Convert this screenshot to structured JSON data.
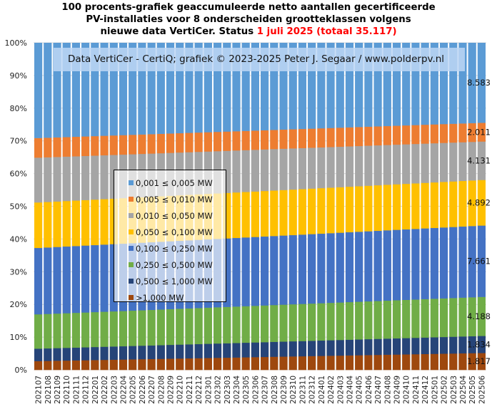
{
  "title": {
    "line1": "100 procents-grafiek geaccumuleerde netto aantallen gecertificeerde",
    "line2": "PV-installaties voor 8 onderscheiden grootteklassen volgens",
    "line3_prefix": "nieuwe data VertiCer. Status ",
    "line3_highlight": "1 juli 2025 (totaal 35.117)",
    "highlight_color": "#ff0000"
  },
  "annotation": "Data VertiCer - CertiQ; grafiek © 2023-2025  Peter J. Segaar / www.polderpv.nl",
  "chart_data": {
    "type": "bar",
    "stacked": "100%",
    "title": "100 procents-grafiek geaccumuleerde netto aantallen gecertificeerde PV-installaties voor 8 onderscheiden grootteklassen volgens nieuwe data VertiCer. Status 1 juli 2025 (totaal 35.117)",
    "xlabel": "",
    "ylabel": "",
    "ylim": [
      0,
      100
    ],
    "yticks": [
      "0%",
      "10%",
      "20%",
      "30%",
      "40%",
      "50%",
      "60%",
      "70%",
      "80%",
      "90%",
      "100%"
    ],
    "grid": true,
    "legend_position": "center-left",
    "categories": [
      "202107",
      "202108",
      "202109",
      "202110",
      "202111",
      "202112",
      "202201",
      "202202",
      "202203",
      "202204",
      "202205",
      "202206",
      "202207",
      "202208",
      "202209",
      "202210",
      "202211",
      "202212",
      "202301",
      "202302",
      "202303",
      "202304",
      "202305",
      "202306",
      "202307",
      "202308",
      "202309",
      "202310",
      "202311",
      "202312",
      "202401",
      "202402",
      "202403",
      "202404",
      "202405",
      "202406",
      "202407",
      "202408",
      "202409",
      "202410",
      "202411",
      "202412",
      "202501",
      "202502",
      "202503",
      "202504",
      "202505",
      "202506"
    ],
    "series": [
      {
        "name": ">1,000 MW",
        "color": "#9e480e",
        "end_label": "1.817",
        "values": [
          2.7,
          2.75,
          2.81,
          2.86,
          2.91,
          2.96,
          3.02,
          3.07,
          3.12,
          3.17,
          3.23,
          3.28,
          3.33,
          3.38,
          3.44,
          3.49,
          3.54,
          3.59,
          3.65,
          3.7,
          3.75,
          3.8,
          3.86,
          3.91,
          3.96,
          4.02,
          4.07,
          4.12,
          4.17,
          4.23,
          4.28,
          4.33,
          4.38,
          4.44,
          4.49,
          4.54,
          4.59,
          4.65,
          4.7,
          4.75,
          4.8,
          4.86,
          4.91,
          4.96,
          5.01,
          5.07,
          5.12,
          5.17
        ]
      },
      {
        "name": "0,500 ≤  1,000 MW",
        "color": "#264478",
        "end_label": "1.834",
        "values": [
          3.8,
          3.83,
          3.86,
          3.89,
          3.92,
          3.95,
          3.98,
          4.01,
          4.04,
          4.07,
          4.1,
          4.13,
          4.16,
          4.19,
          4.22,
          4.25,
          4.28,
          4.31,
          4.34,
          4.37,
          4.4,
          4.43,
          4.46,
          4.49,
          4.52,
          4.56,
          4.59,
          4.62,
          4.65,
          4.68,
          4.71,
          4.74,
          4.77,
          4.8,
          4.83,
          4.86,
          4.89,
          4.92,
          4.95,
          4.98,
          5.01,
          5.04,
          5.07,
          5.1,
          5.13,
          5.16,
          5.19,
          5.22
        ]
      },
      {
        "name": "0,250 ≤  0,500 MW",
        "color": "#70ad47",
        "end_label": "4.188",
        "values": [
          10.5,
          10.53,
          10.56,
          10.59,
          10.62,
          10.65,
          10.68,
          10.71,
          10.74,
          10.77,
          10.8,
          10.83,
          10.86,
          10.9,
          10.93,
          10.96,
          10.99,
          11.02,
          11.05,
          11.08,
          11.11,
          11.14,
          11.17,
          11.2,
          11.23,
          11.26,
          11.29,
          11.32,
          11.35,
          11.38,
          11.41,
          11.44,
          11.47,
          11.5,
          11.53,
          11.56,
          11.59,
          11.62,
          11.66,
          11.69,
          11.72,
          11.75,
          11.78,
          11.81,
          11.84,
          11.87,
          11.9,
          11.93
        ]
      },
      {
        "name": "0,100 ≤  0,250 MW",
        "color": "#4472c4",
        "end_label": "7.661",
        "values": [
          20.3,
          20.33,
          20.36,
          20.4,
          20.43,
          20.46,
          20.49,
          20.53,
          20.56,
          20.59,
          20.62,
          20.66,
          20.69,
          20.72,
          20.75,
          20.78,
          20.82,
          20.85,
          20.88,
          20.91,
          20.95,
          20.98,
          21.01,
          21.04,
          21.08,
          21.11,
          21.14,
          21.17,
          21.2,
          21.24,
          21.27,
          21.3,
          21.33,
          21.37,
          21.4,
          21.43,
          21.46,
          21.5,
          21.53,
          21.56,
          21.59,
          21.63,
          21.66,
          21.69,
          21.72,
          21.75,
          21.79,
          21.82
        ]
      },
      {
        "name": "0,050 ≤  0,100 MW",
        "color": "#ffc000",
        "end_label": "4.892",
        "values": [
          13.9,
          13.9,
          13.9,
          13.9,
          13.9,
          13.9,
          13.9,
          13.9,
          13.9,
          13.9,
          13.9,
          13.9,
          13.9,
          13.9,
          13.9,
          13.9,
          13.9,
          13.9,
          13.9,
          13.9,
          13.9,
          13.9,
          13.9,
          13.9,
          13.91,
          13.91,
          13.91,
          13.91,
          13.91,
          13.91,
          13.91,
          13.91,
          13.91,
          13.91,
          13.92,
          13.92,
          13.92,
          13.92,
          13.92,
          13.92,
          13.92,
          13.92,
          13.92,
          13.93,
          13.93,
          13.93,
          13.93,
          13.93
        ]
      },
      {
        "name": "0,010 ≤  0,050 MW",
        "color": "#a5a5a5",
        "end_label": "4.131",
        "values": [
          13.7,
          13.66,
          13.62,
          13.58,
          13.53,
          13.49,
          13.45,
          13.41,
          13.37,
          13.33,
          13.29,
          13.25,
          13.2,
          13.16,
          13.12,
          13.08,
          13.04,
          13.0,
          12.96,
          12.92,
          12.87,
          12.83,
          12.79,
          12.75,
          12.71,
          12.67,
          12.63,
          12.59,
          12.54,
          12.5,
          12.46,
          12.42,
          12.38,
          12.34,
          12.3,
          12.26,
          12.21,
          12.17,
          12.13,
          12.09,
          12.05,
          12.01,
          11.97,
          11.93,
          11.88,
          11.84,
          11.8,
          11.76
        ]
      },
      {
        "name": "0,005 ≤  0,010 MW",
        "color": "#ed7d31",
        "end_label": "2.011",
        "values": [
          6.0,
          5.99,
          5.99,
          5.98,
          5.98,
          5.97,
          5.97,
          5.96,
          5.95,
          5.95,
          5.94,
          5.94,
          5.93,
          5.93,
          5.92,
          5.91,
          5.91,
          5.9,
          5.9,
          5.89,
          5.89,
          5.88,
          5.87,
          5.87,
          5.86,
          5.86,
          5.85,
          5.85,
          5.84,
          5.83,
          5.83,
          5.82,
          5.82,
          5.81,
          5.81,
          5.8,
          5.79,
          5.79,
          5.78,
          5.78,
          5.77,
          5.77,
          5.76,
          5.75,
          5.75,
          5.74,
          5.74,
          5.73
        ]
      },
      {
        "name": "0,001 ≤  0,005 MW",
        "color": "#5b9bd5",
        "end_label": "8.583",
        "values": [
          29.1,
          29.0,
          28.9,
          28.8,
          28.7,
          28.6,
          28.51,
          28.41,
          28.31,
          28.21,
          28.11,
          28.01,
          27.91,
          27.81,
          27.71,
          27.61,
          27.51,
          27.42,
          27.32,
          27.22,
          27.12,
          27.02,
          26.92,
          26.82,
          26.72,
          26.62,
          26.52,
          26.42,
          26.33,
          26.23,
          26.13,
          26.03,
          25.93,
          25.83,
          25.73,
          25.63,
          25.53,
          25.43,
          25.34,
          25.24,
          25.14,
          25.04,
          24.94,
          24.84,
          24.74,
          24.64,
          24.54,
          24.44
        ]
      }
    ],
    "legend_order": [
      "0,001 ≤  0,005 MW",
      "0,005 ≤  0,010 MW",
      "0,010 ≤  0,050 MW",
      "0,050 ≤  0,100 MW",
      "0,100 ≤  0,250 MW",
      "0,250 ≤  0,500 MW",
      "0,500 ≤  1,000 MW",
      ">1,000 MW"
    ]
  },
  "legend": [
    {
      "label": "0,001 ≤  0,005 MW",
      "color": "#5b9bd5"
    },
    {
      "label": "0,005 ≤  0,010 MW",
      "color": "#ed7d31"
    },
    {
      "label": "0,010 ≤  0,050 MW",
      "color": "#a5a5a5"
    },
    {
      "label": "0,050 ≤  0,100 MW",
      "color": "#ffc000"
    },
    {
      "label": "0,100 ≤  0,250 MW",
      "color": "#4472c4"
    },
    {
      "label": "0,250 ≤  0,500 MW",
      "color": "#70ad47"
    },
    {
      "label": "0,500 ≤  1,000 MW",
      "color": "#264478"
    },
    {
      "label": ">1,000 MW",
      "color": "#9e480e"
    }
  ]
}
